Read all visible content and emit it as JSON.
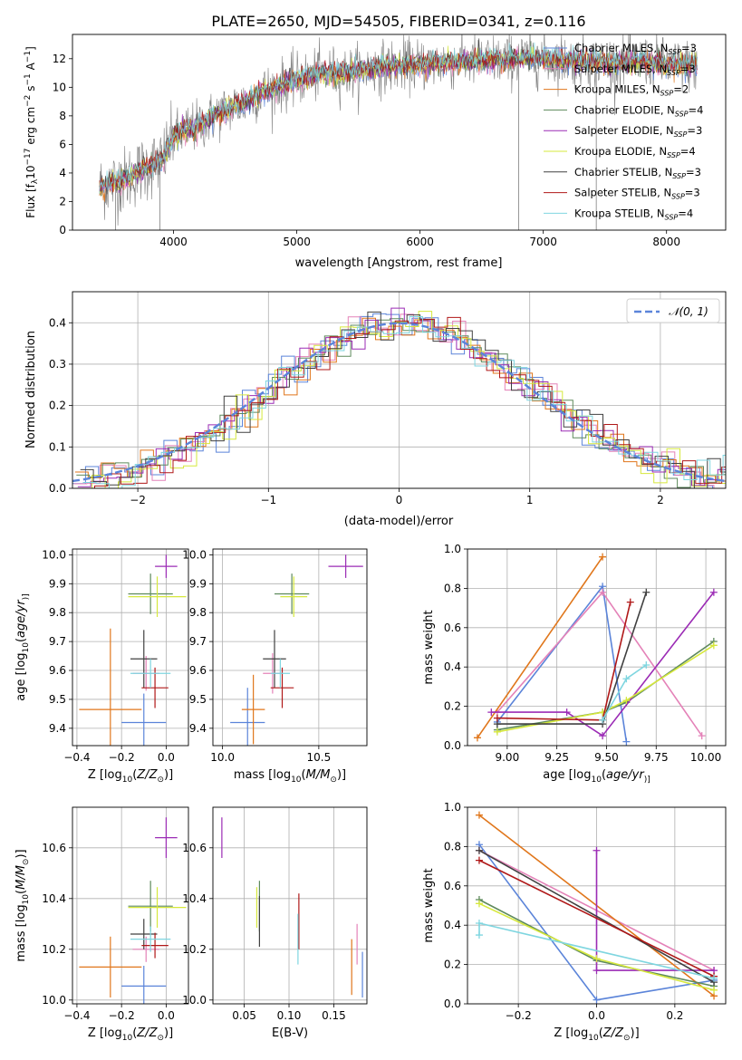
{
  "figure_title": "PLATE=2650, MJD=54505, FIBERID=0341, z=0.116",
  "colors": {
    "Chabrier MILES": "#5b84d9",
    "Salpeter MILES": "#e482b8",
    "Kroupa MILES": "#e0761b",
    "Chabrier ELODIE": "#5e8a5c",
    "Salpeter ELODIE": "#9b2bb5",
    "Kroupa ELODIE": "#d6e83c",
    "Chabrier STELIB": "#404040",
    "Salpeter STELIB": "#b01818",
    "Kroupa STELIB": "#7fd6e0",
    "data": "#7f7f7f",
    "gaussian": "#5b84d9"
  },
  "chart_data": [
    {
      "id": "spectrum",
      "type": "line",
      "xlabel": "wavelength [Angstrom, rest frame]",
      "ylabel_parts": [
        "Flux [f",
        "λ",
        "10",
        "−17",
        " erg cm",
        "−2",
        " s",
        "−1",
        " A",
        "−1",
        "]"
      ],
      "xlim": [
        3180,
        8480
      ],
      "ylim": [
        0,
        13.7
      ],
      "xticks": [
        4000,
        5000,
        6000,
        7000,
        8000
      ],
      "yticks": [
        0,
        2,
        4,
        6,
        8,
        10,
        12
      ],
      "legend_location": "upper right",
      "legend": [
        {
          "label": "Chabrier MILES, N",
          "sub": "SSP",
          "tail": "=3"
        },
        {
          "label": "Salpeter MILES, N",
          "sub": "SSP",
          "tail": "=3"
        },
        {
          "label": "Kroupa MILES, N",
          "sub": "SSP",
          "tail": "=2"
        },
        {
          "label": "Chabrier ELODIE, N",
          "sub": "SSP",
          "tail": "=4"
        },
        {
          "label": "Salpeter ELODIE, N",
          "sub": "SSP",
          "tail": "=3"
        },
        {
          "label": "Kroupa ELODIE, N",
          "sub": "SSP",
          "tail": "=4"
        },
        {
          "label": "Chabrier STELIB, N",
          "sub": "SSP",
          "tail": "=3"
        },
        {
          "label": "Salpeter STELIB, N",
          "sub": "SSP",
          "tail": "=3"
        },
        {
          "label": "Kroupa STELIB, N",
          "sub": "SSP",
          "tail": "=4"
        }
      ],
      "continuum": {
        "x": [
          3400,
          3500,
          3600,
          3700,
          3800,
          3900,
          4000,
          4100,
          4200,
          4300,
          4400,
          4500,
          4600,
          4700,
          4800,
          4900,
          5000,
          5200,
          5400,
          5600,
          5800,
          6000,
          6200,
          6400,
          6600,
          6800,
          7000,
          7200,
          7400,
          7600,
          7800,
          8000,
          8250
        ],
        "y": [
          3.0,
          3.3,
          3.5,
          4.0,
          4.5,
          4.8,
          6.5,
          7.0,
          7.3,
          7.8,
          8.3,
          8.7,
          9.0,
          9.6,
          9.9,
          10.2,
          10.5,
          11.0,
          11.0,
          11.3,
          11.5,
          11.6,
          11.7,
          11.8,
          11.9,
          12.0,
          12.0,
          11.9,
          11.8,
          11.7,
          11.8,
          11.6,
          11.5
        ]
      },
      "data_noise": 1.3
    },
    {
      "id": "residuals",
      "type": "step",
      "xlabel": "(data-model)/error",
      "ylabel": "Normed distribution",
      "xlim": [
        -2.5,
        2.5
      ],
      "ylim": [
        0,
        0.475
      ],
      "xticks": [
        -2,
        -1,
        0,
        1,
        2
      ],
      "yticks": [
        0.0,
        0.1,
        0.2,
        0.3,
        0.4
      ],
      "bin_width": 0.1,
      "legend_location": "upper right",
      "gaussian_label": "𝒩(0, 1)"
    },
    {
      "id": "age-vs-Z",
      "type": "errorbar",
      "xlabel_parts": [
        "Z [log",
        "10",
        "(",
        "Z/Z",
        "⊙",
        ")]"
      ],
      "ylabel_parts": [
        "age  [log",
        "10",
        "(",
        "age/yr",
        ")]"
      ],
      "xlim": [
        -0.42,
        0.1
      ],
      "ylim": [
        9.34,
        10.02
      ],
      "xticks": [
        -0.4,
        -0.2,
        0.0
      ],
      "yticks": [
        9.4,
        9.5,
        9.6,
        9.7,
        9.8,
        9.9,
        10.0
      ],
      "points": [
        {
          "model": "Chabrier MILES",
          "x": -0.1,
          "xerr": 0.1,
          "y": 9.42,
          "yerr": 0.1
        },
        {
          "model": "Salpeter MILES",
          "x": -0.09,
          "xerr": 0.06,
          "y": 9.59,
          "yerr": 0.06
        },
        {
          "model": "Kroupa MILES",
          "x": -0.25,
          "xerr": 0.14,
          "y": 9.465,
          "yerr": 0.28
        },
        {
          "model": "Chabrier ELODIE",
          "x": -0.07,
          "xerr": 0.1,
          "y": 9.865,
          "yerr": 0.07
        },
        {
          "model": "Salpeter ELODIE",
          "x": 0.0,
          "xerr": 0.05,
          "y": 9.96,
          "yerr": 0.04
        },
        {
          "model": "Kroupa ELODIE",
          "x": -0.04,
          "xerr": 0.13,
          "y": 9.855,
          "yerr": 0.07
        },
        {
          "model": "Chabrier STELIB",
          "x": -0.1,
          "xerr": 0.06,
          "y": 9.64,
          "yerr": 0.1
        },
        {
          "model": "Salpeter STELIB",
          "x": -0.05,
          "xerr": 0.06,
          "y": 9.54,
          "yerr": 0.07
        },
        {
          "model": "Kroupa STELIB",
          "x": -0.07,
          "xerr": 0.09,
          "y": 9.59,
          "yerr": 0.05
        }
      ]
    },
    {
      "id": "age-vs-mass",
      "type": "errorbar",
      "xlabel_parts": [
        "mass [log",
        "10",
        "(",
        "M/M",
        "⊙",
        ")]"
      ],
      "xlim": [
        9.95,
        10.75
      ],
      "ylim": [
        9.34,
        10.02
      ],
      "xticks": [
        10.0,
        10.5
      ],
      "yticks": [
        9.4,
        9.5,
        9.6,
        9.7,
        9.8,
        9.9,
        10.0
      ],
      "points": [
        {
          "model": "Chabrier MILES",
          "x": 10.13,
          "xerr": 0.09,
          "y": 9.42,
          "yerr": 0.12
        },
        {
          "model": "Salpeter MILES",
          "x": 10.26,
          "xerr": 0.05,
          "y": 9.59,
          "yerr": 0.07
        },
        {
          "model": "Kroupa MILES",
          "x": 10.16,
          "xerr": 0.06,
          "y": 9.465,
          "yerr": 0.12
        },
        {
          "model": "Chabrier ELODIE",
          "x": 10.36,
          "xerr": 0.09,
          "y": 9.865,
          "yerr": 0.07
        },
        {
          "model": "Salpeter ELODIE",
          "x": 10.64,
          "xerr": 0.09,
          "y": 9.96,
          "yerr": 0.04
        },
        {
          "model": "Kroupa ELODIE",
          "x": 10.37,
          "xerr": 0.07,
          "y": 9.855,
          "yerr": 0.07
        },
        {
          "model": "Chabrier STELIB",
          "x": 10.27,
          "xerr": 0.06,
          "y": 9.64,
          "yerr": 0.1
        },
        {
          "model": "Salpeter STELIB",
          "x": 10.31,
          "xerr": 0.06,
          "y": 9.54,
          "yerr": 0.07
        },
        {
          "model": "Kroupa STELIB",
          "x": 10.3,
          "xerr": 0.05,
          "y": 9.59,
          "yerr": 0.05
        }
      ]
    },
    {
      "id": "weight-vs-age",
      "type": "line",
      "xlabel_parts": [
        "age  [log",
        "10",
        "(",
        "age/yr",
        ")]"
      ],
      "ylabel": "mass weight",
      "xlim": [
        8.8,
        10.1
      ],
      "ylim": [
        0,
        1.0
      ],
      "xticks": [
        9.0,
        9.25,
        9.5,
        9.75,
        10.0
      ],
      "yticks": [
        0.0,
        0.2,
        0.4,
        0.6,
        0.8,
        1.0
      ],
      "series": [
        {
          "model": "Chabrier MILES",
          "x": [
            8.95,
            9.48,
            9.6
          ],
          "y": [
            0.12,
            0.81,
            0.02
          ]
        },
        {
          "model": "Salpeter MILES",
          "x": [
            8.95,
            9.48,
            9.98
          ],
          "y": [
            0.17,
            0.78,
            0.05
          ]
        },
        {
          "model": "Kroupa MILES",
          "x": [
            8.85,
            9.48
          ],
          "y": [
            0.04,
            0.96
          ]
        },
        {
          "model": "Chabrier ELODIE",
          "x": [
            8.95,
            9.48,
            9.6,
            10.04
          ],
          "y": [
            0.08,
            0.17,
            0.22,
            0.53
          ]
        },
        {
          "model": "Salpeter ELODIE",
          "x": [
            8.92,
            9.3,
            9.48,
            10.04
          ],
          "y": [
            0.17,
            0.17,
            0.05,
            0.78
          ]
        },
        {
          "model": "Kroupa ELODIE",
          "x": [
            8.95,
            9.48,
            9.6,
            10.04
          ],
          "y": [
            0.07,
            0.17,
            0.23,
            0.51
          ]
        },
        {
          "model": "Chabrier STELIB",
          "x": [
            8.95,
            9.48,
            9.7
          ],
          "y": [
            0.11,
            0.11,
            0.78
          ]
        },
        {
          "model": "Salpeter STELIB",
          "x": [
            8.95,
            9.48,
            9.62
          ],
          "y": [
            0.14,
            0.13,
            0.73
          ]
        },
        {
          "model": "Kroupa STELIB",
          "x": [
            9.48,
            9.6,
            9.7
          ],
          "y": [
            0.13,
            0.34,
            0.41
          ]
        }
      ]
    },
    {
      "id": "mass-vs-Z",
      "type": "errorbar",
      "xlabel_parts": [
        "Z [log",
        "10",
        "(",
        "Z/Z",
        "⊙",
        ")]"
      ],
      "ylabel_parts": [
        "mass [log",
        "10",
        "(",
        "M/M",
        "⊙",
        ")]"
      ],
      "xlim": [
        -0.42,
        0.1
      ],
      "ylim": [
        9.985,
        10.76
      ],
      "xticks": [
        -0.4,
        -0.2,
        0.0
      ],
      "yticks": [
        10.0,
        10.2,
        10.4,
        10.6
      ],
      "points": [
        {
          "model": "Chabrier MILES",
          "x": -0.1,
          "xerr": 0.1,
          "y": 10.055,
          "yerr": 0.08
        },
        {
          "model": "Salpeter MILES",
          "x": -0.09,
          "xerr": 0.06,
          "y": 10.2,
          "yerr": 0.05
        },
        {
          "model": "Kroupa MILES",
          "x": -0.25,
          "xerr": 0.14,
          "y": 10.13,
          "yerr": 0.12
        },
        {
          "model": "Chabrier ELODIE",
          "x": -0.07,
          "xerr": 0.1,
          "y": 10.37,
          "yerr": 0.1
        },
        {
          "model": "Salpeter ELODIE",
          "x": 0.0,
          "xerr": 0.05,
          "y": 10.64,
          "yerr": 0.08
        },
        {
          "model": "Kroupa ELODIE",
          "x": -0.04,
          "xerr": 0.13,
          "y": 10.365,
          "yerr": 0.08
        },
        {
          "model": "Chabrier STELIB",
          "x": -0.1,
          "xerr": 0.06,
          "y": 10.26,
          "yerr": 0.06
        },
        {
          "model": "Salpeter STELIB",
          "x": -0.05,
          "xerr": 0.06,
          "y": 10.215,
          "yerr": 0.05
        },
        {
          "model": "Kroupa STELIB",
          "x": -0.07,
          "xerr": 0.09,
          "y": 10.24,
          "yerr": 0.05
        }
      ]
    },
    {
      "id": "mass-vs-ebv",
      "type": "errorbar",
      "xlabel": "E(B-V)",
      "xlim": [
        0.015,
        0.187
      ],
      "ylim": [
        9.985,
        10.76
      ],
      "xticks": [
        0.05,
        0.1,
        0.15
      ],
      "yticks": [
        10.0,
        10.2,
        10.4,
        10.6
      ],
      "points": [
        {
          "model": "Chabrier MILES",
          "x": 0.182,
          "xerr": 0,
          "y": 10.1,
          "yerr": 0.09
        },
        {
          "model": "Salpeter MILES",
          "x": 0.176,
          "xerr": 0,
          "y": 10.22,
          "yerr": 0.08
        },
        {
          "model": "Kroupa MILES",
          "x": 0.17,
          "xerr": 0,
          "y": 10.13,
          "yerr": 0.11
        },
        {
          "model": "Chabrier ELODIE",
          "x": 0.067,
          "xerr": 0,
          "y": 10.37,
          "yerr": 0.1
        },
        {
          "model": "Salpeter ELODIE",
          "x": 0.025,
          "xerr": 0,
          "y": 10.64,
          "yerr": 0.08
        },
        {
          "model": "Kroupa ELODIE",
          "x": 0.064,
          "xerr": 0,
          "y": 10.365,
          "yerr": 0.08
        },
        {
          "model": "Chabrier STELIB",
          "x": 0.067,
          "xerr": 0,
          "y": 10.31,
          "yerr": 0.1
        },
        {
          "model": "Salpeter STELIB",
          "x": 0.111,
          "xerr": 0,
          "y": 10.31,
          "yerr": 0.11
        },
        {
          "model": "Kroupa STELIB",
          "x": 0.11,
          "xerr": 0,
          "y": 10.24,
          "yerr": 0.1
        }
      ]
    },
    {
      "id": "weight-vs-Z",
      "type": "line",
      "xlabel_parts": [
        "Z [log",
        "10",
        "(",
        "Z/Z",
        "⊙",
        ")]"
      ],
      "ylabel": "mass weight",
      "xlim": [
        -0.33,
        0.33
      ],
      "ylim": [
        0,
        1.0
      ],
      "xticks": [
        -0.2,
        0.0,
        0.2
      ],
      "yticks": [
        0.0,
        0.2,
        0.4,
        0.6,
        0.8,
        1.0
      ],
      "series": [
        {
          "model": "Chabrier MILES",
          "x": [
            -0.3,
            0.0,
            0.3
          ],
          "y": [
            0.81,
            0.02,
            0.12
          ]
        },
        {
          "model": "Salpeter MILES",
          "x": [
            -0.3,
            0.3
          ],
          "y": [
            0.78,
            0.17
          ]
        },
        {
          "model": "Kroupa MILES",
          "x": [
            -0.3,
            0.3
          ],
          "y": [
            0.96,
            0.04
          ]
        },
        {
          "model": "Chabrier ELODIE",
          "x": [
            -0.3,
            0.0,
            0.3
          ],
          "y": [
            0.53,
            0.22,
            0.09
          ]
        },
        {
          "model": "Salpeter ELODIE",
          "x": [
            0.0,
            0.0,
            0.3
          ],
          "y": [
            0.78,
            0.17,
            0.17
          ]
        },
        {
          "model": "Kroupa ELODIE",
          "x": [
            -0.3,
            0.0,
            0.3
          ],
          "y": [
            0.51,
            0.23,
            0.07
          ]
        },
        {
          "model": "Chabrier STELIB",
          "x": [
            -0.3,
            0.3
          ],
          "y": [
            0.78,
            0.11
          ]
        },
        {
          "model": "Salpeter STELIB",
          "x": [
            -0.3,
            0.3
          ],
          "y": [
            0.73,
            0.14
          ]
        },
        {
          "model": "Kroupa STELIB",
          "x": [
            -0.3,
            -0.3,
            0.3
          ],
          "y": [
            0.35,
            0.41,
            0.13
          ]
        }
      ]
    }
  ]
}
